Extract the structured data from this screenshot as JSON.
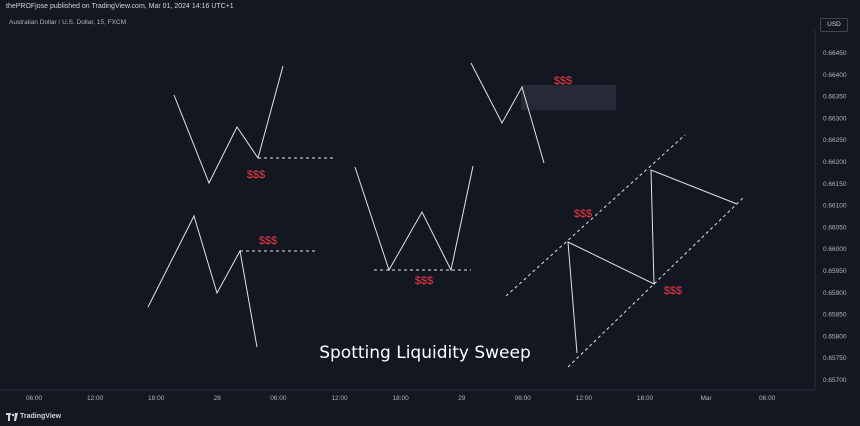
{
  "header": {
    "published_by": "thePROFjose published on TradingView.com, Mar 01, 2024 14:16 UTC+1"
  },
  "symbol_info": "Australian Dollar / U.S. Dollar, 15, FXCM",
  "currency_button": "USD",
  "footer": {
    "brand": "TradingView",
    "logo_icon": "tradingview-logo-icon"
  },
  "colors": {
    "background": "#131722",
    "lines": "#e0e3eb",
    "sweep_label": "#f23645",
    "zone": "#2a2e39"
  },
  "chart_data": {
    "type": "line",
    "title": "Spotting Liquidity Sweep",
    "y_ticks": [
      "0.66450",
      "0.66400",
      "0.66350",
      "0.66300",
      "0.66250",
      "0.66200",
      "0.66150",
      "0.66100",
      "0.66050",
      "0.66000",
      "0.65950",
      "0.65900",
      "0.65850",
      "0.65800",
      "0.65750",
      "0.65700"
    ],
    "x_ticks": [
      "06:00",
      "12:00",
      "18:00",
      "28",
      "06:00",
      "12:00",
      "18:00",
      "29",
      "06:00",
      "12:00",
      "18:00",
      "Mar",
      "06:00"
    ],
    "sweep_label": "$$$",
    "annotation_count": 7
  }
}
